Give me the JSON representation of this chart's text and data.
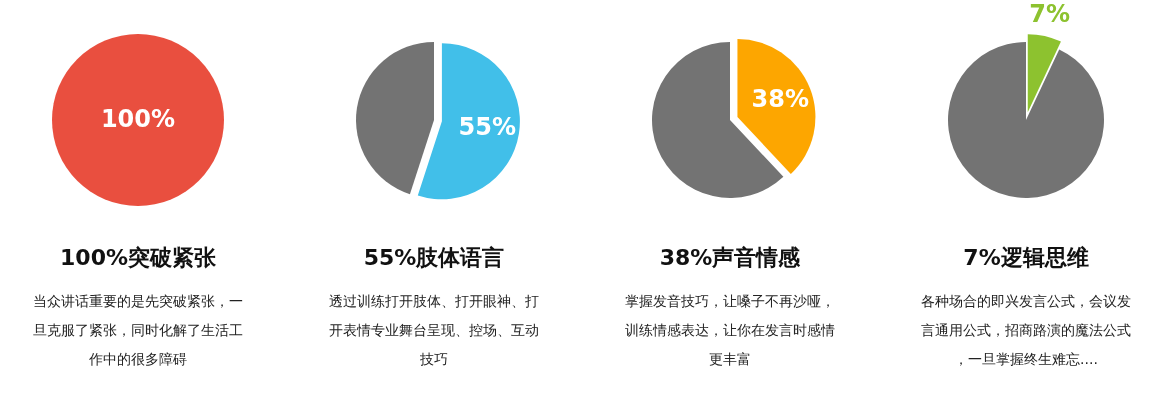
{
  "chart_data": [
    {
      "type": "pie",
      "title": "100%突破紧张",
      "categories": [
        null
      ],
      "values": [
        100
      ],
      "colors": [
        "#e94f3f"
      ],
      "value_labels": [
        "100%"
      ],
      "annotations": [
        "当众讲话重要的是先突破紧张，一旦克服了紧张，同时化解了生活工作中的很多障碍"
      ]
    },
    {
      "type": "pie",
      "title": "55%肢体语言",
      "categories": [
        null,
        null
      ],
      "values": [
        55,
        45
      ],
      "colors": [
        "#41bfe9",
        "#737373"
      ],
      "value_labels": [
        "55%",
        null
      ],
      "annotations": [
        "透过训练打开肢体、打开眼神、打开表情专业舞台呈现、控场、互动技巧"
      ]
    },
    {
      "type": "pie",
      "title": "38%声音情感",
      "categories": [
        null,
        null
      ],
      "values": [
        38,
        62
      ],
      "colors": [
        "#fda600",
        "#737373"
      ],
      "value_labels": [
        "38%",
        null
      ],
      "annotations": [
        "掌握发音技巧，让嗓子不再沙哑，训练情感表达，让你在发言时感情更丰富"
      ]
    },
    {
      "type": "pie",
      "title": "7%逻辑思维",
      "categories": [
        null,
        null
      ],
      "values": [
        7,
        93
      ],
      "colors": [
        "#8dc22f",
        "#737373"
      ],
      "value_labels": [
        "7%",
        null
      ],
      "annotations": [
        "各种场合的即兴发言公式，会议发言通用公式，招商路演的魔法公式，一旦掌握终生难忘...."
      ]
    }
  ]
}
